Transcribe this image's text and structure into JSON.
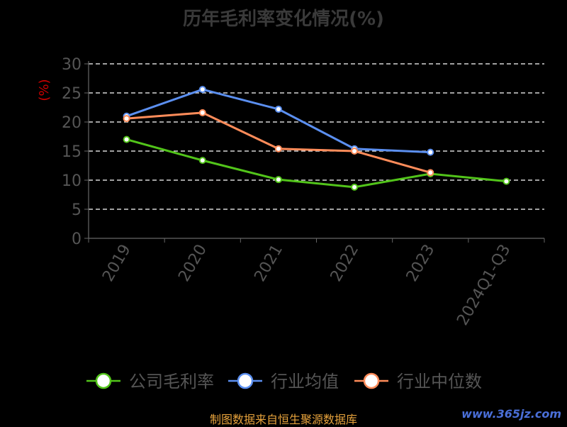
{
  "chart_data": {
    "type": "line",
    "title": "历年毛利率变化情况(%)",
    "ylabel": "(%)",
    "xlabel": "",
    "ylim": [
      0,
      30
    ],
    "yticks": [
      0,
      5,
      10,
      15,
      20,
      25,
      30
    ],
    "categories": [
      "2019",
      "2020",
      "2021",
      "2022",
      "2023",
      "2024Q1-Q3"
    ],
    "grid": true,
    "legend_position": "bottom",
    "series": [
      {
        "name": "公司毛利率",
        "color": "#52c41a",
        "values": [
          17.0,
          13.4,
          10.1,
          8.8,
          11.1,
          9.8
        ]
      },
      {
        "name": "行业均值",
        "color": "#5b8ff0",
        "values": [
          21.0,
          25.6,
          22.2,
          15.4,
          14.8,
          null
        ]
      },
      {
        "name": "行业中位数",
        "color": "#ff8c5a",
        "values": [
          20.6,
          21.6,
          15.4,
          15.0,
          11.3,
          null
        ]
      }
    ]
  },
  "footer": {
    "source": "制图数据来自恒生聚源数据库",
    "watermark": "www.365jz.com"
  }
}
